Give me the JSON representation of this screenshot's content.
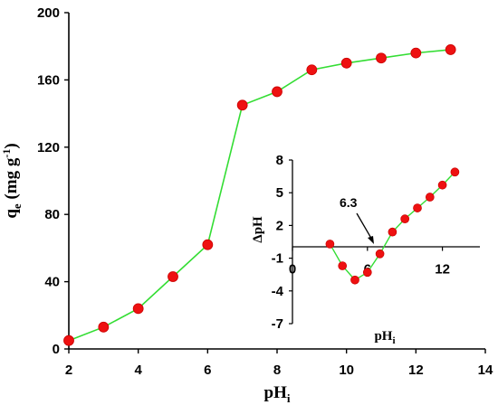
{
  "colors": {
    "line": "#33dd33",
    "marker": "#ee1111",
    "marker_edge": "#cc0000",
    "axis": "#000000"
  },
  "chart_data": [
    {
      "type": "line",
      "x": [
        2,
        3,
        4,
        5,
        6,
        7,
        8,
        9,
        10,
        11,
        12,
        13
      ],
      "series": [
        {
          "values": [
            5,
            13,
            24,
            43,
            62,
            145,
            153,
            166,
            170,
            173,
            176,
            178
          ]
        }
      ],
      "xlim": [
        2,
        14
      ],
      "ylim": [
        0,
        200
      ],
      "xticks": [
        2,
        4,
        6,
        8,
        10,
        12,
        14
      ],
      "yticks": [
        0,
        40,
        80,
        120,
        160,
        200
      ],
      "xlabel": {
        "main": "pH",
        "sub": "i"
      },
      "ylabel": {
        "main": "q",
        "sub": "e",
        "rest": " (mg g",
        "sup": "-1",
        "end": ")"
      },
      "grid": false
    },
    {
      "type": "line",
      "inset": true,
      "x": [
        3,
        4,
        5,
        6,
        7,
        8,
        9,
        10,
        11,
        12,
        13
      ],
      "series": [
        {
          "values": [
            0.3,
            -1.7,
            -3.0,
            -2.3,
            -0.6,
            1.4,
            2.6,
            3.6,
            4.6,
            5.7,
            6.9
          ]
        }
      ],
      "xlim": [
        0,
        15
      ],
      "ylim": [
        -7,
        8
      ],
      "xticks": [
        0,
        6,
        12
      ],
      "yticks": [
        8,
        5,
        2,
        -1,
        -4,
        -7
      ],
      "xtick_labels": [
        "0",
        "6",
        "12"
      ],
      "ytick_labels": [
        "8",
        "5",
        "2",
        "-1",
        "-4",
        "-7"
      ],
      "xlabel": {
        "main": "pH",
        "sub": "i"
      },
      "ylabel": "ΔpH",
      "annotation": {
        "text": "6.3",
        "x": 6.3,
        "y": 0
      },
      "grid": false
    }
  ]
}
